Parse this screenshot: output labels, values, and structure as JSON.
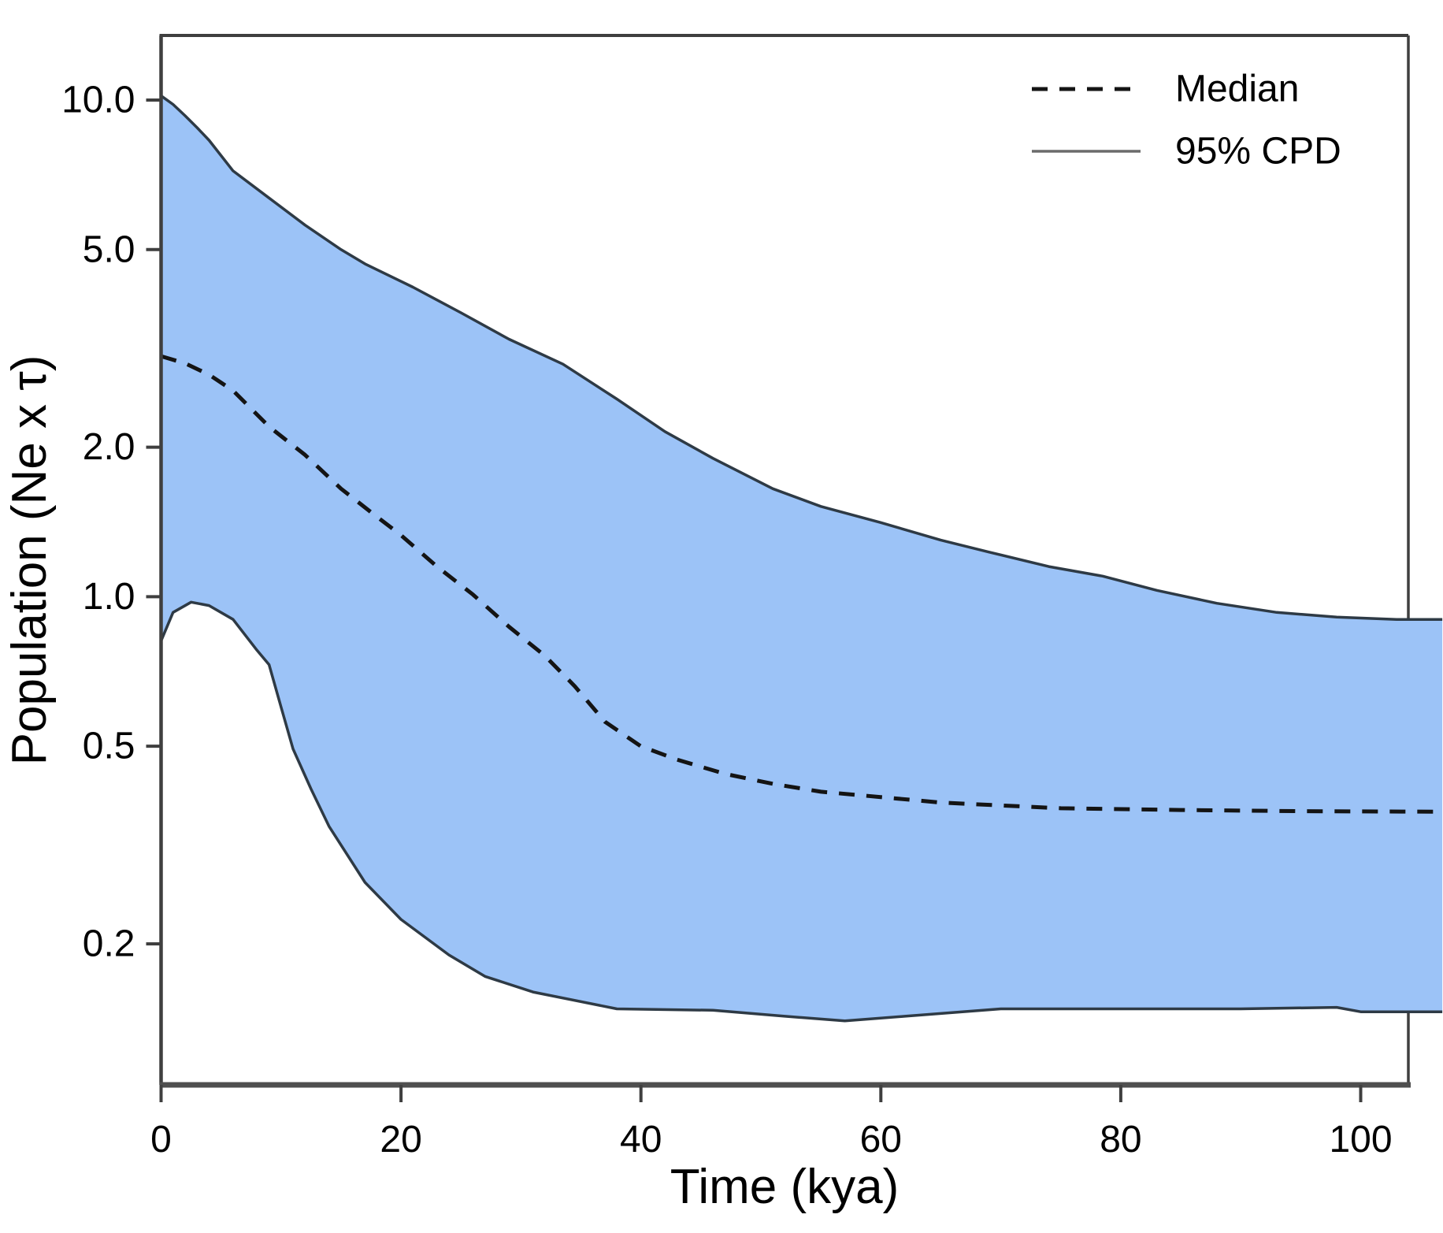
{
  "chart_data": {
    "type": "area",
    "title": "",
    "xlabel": "Time (kya)",
    "ylabel": "Population (Ne x τ)",
    "grid": false,
    "legend_position": "top-right",
    "x_axis": {
      "scale": "linear",
      "ticks": [
        0,
        20,
        40,
        60,
        80,
        100
      ],
      "tick_labels": [
        "0",
        "20",
        "40",
        "60",
        "80",
        "100"
      ],
      "range": [
        0,
        106.8
      ]
    },
    "y_axis": {
      "scale": "log",
      "ticks": [
        10.0,
        5.0,
        2.0,
        1.0,
        0.5,
        0.2
      ],
      "tick_labels": [
        "10.0",
        "5.0",
        "2.0",
        "1.0",
        "0.5",
        "0.2"
      ],
      "range": [
        0.104,
        13.5
      ]
    },
    "legend": [
      {
        "label": "Median",
        "style": "dashed"
      },
      {
        "label": "95% CPD",
        "style": "solid"
      }
    ],
    "colors": {
      "band_fill": "#9CC3F7",
      "band_stroke": "#2E3A45",
      "median_stroke": "#141414",
      "axis": "#3F3F3F",
      "bottom_axis": "#4F4F4F",
      "legend_solid_sample": "#6B6B6B",
      "background": "#FFFFFF"
    },
    "series": [
      {
        "name": "95% CPD upper",
        "role": "band_upper",
        "x": [
          0,
          1,
          2,
          3,
          4,
          6,
          9,
          12,
          15,
          17,
          21,
          25,
          29,
          33.5,
          38,
          42,
          46,
          51,
          55,
          60,
          65,
          69,
          74,
          78.5,
          83,
          88,
          93,
          98,
          103,
          106.8
        ],
        "y": [
          10.2,
          9.8,
          9.3,
          8.8,
          8.3,
          7.2,
          6.35,
          5.6,
          5.0,
          4.68,
          4.2,
          3.73,
          3.3,
          2.94,
          2.5,
          2.15,
          1.9,
          1.65,
          1.52,
          1.41,
          1.3,
          1.23,
          1.15,
          1.1,
          1.03,
          0.97,
          0.93,
          0.91,
          0.9,
          0.9
        ]
      },
      {
        "name": "Median",
        "role": "median",
        "x": [
          0,
          2,
          4,
          6,
          9,
          12,
          15,
          17.5,
          20,
          23,
          26,
          29,
          32,
          34.5,
          37,
          40,
          43,
          47,
          51,
          55,
          60,
          65,
          70,
          75,
          85,
          95,
          106.8
        ],
        "y": [
          3.05,
          2.95,
          2.8,
          2.6,
          2.2,
          1.93,
          1.65,
          1.48,
          1.33,
          1.15,
          1.01,
          0.87,
          0.76,
          0.66,
          0.56,
          0.5,
          0.47,
          0.44,
          0.42,
          0.405,
          0.395,
          0.385,
          0.38,
          0.375,
          0.372,
          0.37,
          0.369
        ]
      },
      {
        "name": "95% CPD lower",
        "role": "band_lower",
        "x": [
          0,
          1,
          2.5,
          4,
          6,
          8,
          9,
          10,
          11,
          12.5,
          14,
          17,
          20,
          24,
          27,
          31,
          38,
          46,
          52,
          57,
          62,
          70,
          80,
          90,
          98,
          100,
          106.8
        ],
        "y": [
          0.815,
          0.93,
          0.975,
          0.96,
          0.9,
          0.78,
          0.73,
          0.6,
          0.494,
          0.41,
          0.345,
          0.266,
          0.224,
          0.19,
          0.172,
          0.16,
          0.148,
          0.147,
          0.143,
          0.14,
          0.143,
          0.148,
          0.148,
          0.148,
          0.149,
          0.146,
          0.146
        ]
      }
    ]
  }
}
